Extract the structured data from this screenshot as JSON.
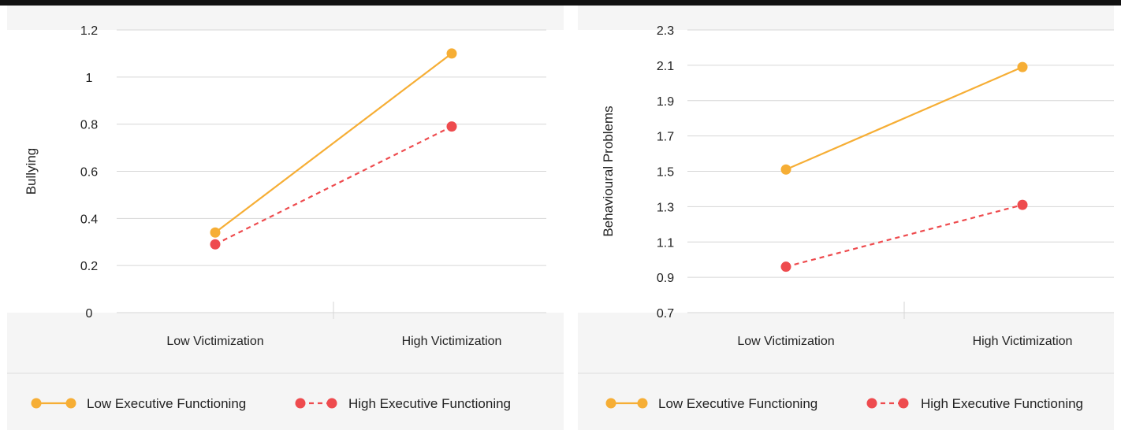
{
  "colors": {
    "low": "#f6ae35",
    "high": "#ee4b4e",
    "panel_bg": "#f5f5f5",
    "grid": "#d6d6d6"
  },
  "chart_data": [
    {
      "type": "line",
      "categories": [
        "Low Victimization",
        "High Victimization"
      ],
      "ylabel": "Bullying",
      "xlabel": "",
      "ylim": [
        0,
        1.2
      ],
      "yticks": [
        0,
        0.2,
        0.4,
        0.6,
        0.8,
        1,
        1.2
      ],
      "grid": true,
      "legend_position": "bottom",
      "series": [
        {
          "name": "Low Executive Functioning",
          "values": [
            0.34,
            1.1
          ],
          "style": "solid",
          "color": "#f6ae35"
        },
        {
          "name": "High Executive Functioning",
          "values": [
            0.29,
            0.79
          ],
          "style": "dashed",
          "color": "#ee4b4e"
        }
      ]
    },
    {
      "type": "line",
      "categories": [
        "Low Victimization",
        "High Victimization"
      ],
      "ylabel": "Behavioural Problems",
      "xlabel": "",
      "ylim": [
        0.7,
        2.3
      ],
      "yticks": [
        0.7,
        0.9,
        1.1,
        1.3,
        1.5,
        1.7,
        1.9,
        2.1,
        2.3
      ],
      "grid": true,
      "legend_position": "bottom",
      "series": [
        {
          "name": "Low Executive Functioning",
          "values": [
            1.51,
            2.09
          ],
          "style": "solid",
          "color": "#f6ae35"
        },
        {
          "name": "High Executive Functioning",
          "values": [
            0.96,
            1.31
          ],
          "style": "dashed",
          "color": "#ee4b4e"
        }
      ]
    }
  ]
}
